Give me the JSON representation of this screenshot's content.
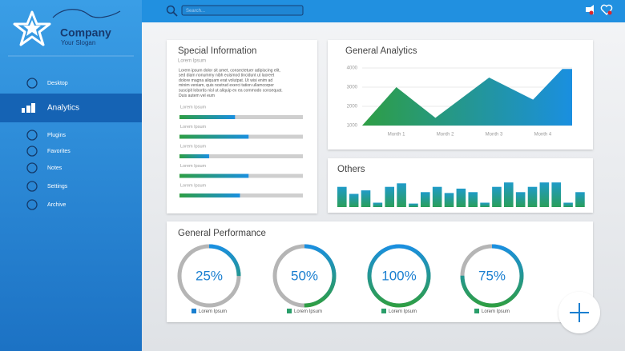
{
  "sidebar": {
    "company": "Company",
    "slogan": "Your Slogan",
    "menu": [
      "Desktop",
      "Analytics",
      "Plugins",
      "Favorites",
      "Notes",
      "Settings",
      "Archive"
    ],
    "active": 1
  },
  "header": {
    "search_placeholder": "Search..."
  },
  "special_information": {
    "title": "Special Information",
    "subtitle": "Lorem Ipsum",
    "paragraph": [
      "Lorem ipsum dolor sit amet, consectetuer adipiscing elit,",
      "sed diam nonummy nibh euismod tincidunt ut laoreet",
      "dolore magna aliquam erat volutpat. Ut wisi enim ad",
      "minim veniam, quis nostrud exerci tation ullamcorper",
      "suscipit lobortis nisl ut aliquip ex ea commodo consequat.",
      "Duis autem vel eum"
    ],
    "progress": {
      "labels": [
        "Lorem Ipsum",
        "Lorem Ipsum",
        "Lorem Ipsum",
        "Lorem Ipsum",
        "Lorem Ipsum"
      ],
      "values": [
        45,
        56,
        24,
        56,
        49
      ],
      "max": 100
    }
  },
  "chart_data": [
    {
      "type": "area",
      "title": "General Analytics",
      "x": [
        0.3,
        1,
        1.8,
        2.9,
        3.8,
        4.4,
        4.6
      ],
      "values": [
        1000,
        3000,
        1400,
        3500,
        2350,
        3950,
        3950
      ],
      "xlim": [
        0.3,
        4.6
      ],
      "xticks": [
        {
          "value": 1,
          "label": "Month 1"
        },
        {
          "value": 2,
          "label": "Month 2"
        },
        {
          "value": 3,
          "label": "Month 3"
        },
        {
          "value": 4,
          "label": "Month 4"
        }
      ],
      "ylim": [
        1000,
        4000
      ],
      "yticks": [
        1000,
        2000,
        3000,
        4000
      ],
      "grid": true,
      "colors": [
        "#2e9e44",
        "#1a8fe0"
      ]
    },
    {
      "type": "bar",
      "title": "Others",
      "values": [
        23,
        15,
        19,
        5,
        23,
        27,
        4,
        17,
        23,
        16,
        21,
        17,
        5,
        23,
        28,
        17,
        23,
        28,
        28,
        5,
        17
      ],
      "ylim": [
        0,
        30
      ],
      "colors": [
        "#1f9bc8",
        "#2a9e5a"
      ]
    },
    {
      "type": "donut",
      "title": "General Performance",
      "values": [
        25,
        50,
        100,
        75
      ],
      "value_labels": [
        "25%",
        "50%",
        "100%",
        "75%"
      ],
      "ylim": [
        0,
        100
      ],
      "legend": [
        "Lorem Ipsum",
        "Lorem Ipsum",
        "Lorem Ipsum",
        "Lorem Ipsum"
      ],
      "legend_colors": [
        "#1a7fd0",
        "#2a9e6a",
        "#2a9e6a",
        "#2a9e6a"
      ],
      "colors": [
        "#2e9e44",
        "#1a8fe0"
      ]
    }
  ]
}
